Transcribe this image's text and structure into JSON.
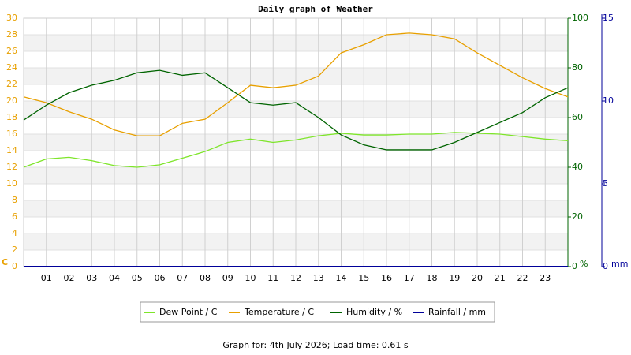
{
  "chart_data": {
    "type": "line",
    "title": "Daily graph of Weather",
    "x": [
      0,
      1,
      2,
      3,
      4,
      5,
      6,
      7,
      8,
      9,
      10,
      11,
      12,
      13,
      14,
      15,
      16,
      17,
      18,
      19,
      20,
      21,
      22,
      23,
      24
    ],
    "xlim": [
      0,
      24
    ],
    "xticks": [
      {
        "value": 1,
        "label": "01"
      },
      {
        "value": 2,
        "label": "02"
      },
      {
        "value": 3,
        "label": "03"
      },
      {
        "value": 4,
        "label": "04"
      },
      {
        "value": 5,
        "label": "05"
      },
      {
        "value": 6,
        "label": "06"
      },
      {
        "value": 7,
        "label": "07"
      },
      {
        "value": 8,
        "label": "08"
      },
      {
        "value": 9,
        "label": "09"
      },
      {
        "value": 10,
        "label": "10"
      },
      {
        "value": 11,
        "label": "11"
      },
      {
        "value": 12,
        "label": "12"
      },
      {
        "value": 13,
        "label": "13"
      },
      {
        "value": 14,
        "label": "14"
      },
      {
        "value": 15,
        "label": "15"
      },
      {
        "value": 16,
        "label": "16"
      },
      {
        "value": 17,
        "label": "17"
      },
      {
        "value": 18,
        "label": "18"
      },
      {
        "value": 19,
        "label": "19"
      },
      {
        "value": 20,
        "label": "20"
      },
      {
        "value": 21,
        "label": "21"
      },
      {
        "value": 22,
        "label": "22"
      },
      {
        "value": 23,
        "label": "23"
      }
    ],
    "ylim": [
      0,
      30
    ],
    "yticks": [
      0,
      2,
      4,
      6,
      8,
      10,
      12,
      14,
      16,
      18,
      20,
      22,
      24,
      26,
      28,
      30
    ],
    "ylabel": "C",
    "ycolor": "#e8a000",
    "y2lim": [
      0,
      100
    ],
    "y2ticks": [
      0,
      20,
      40,
      60,
      80,
      100
    ],
    "y2label": "%",
    "y2color": "#006400",
    "y3lim": [
      0,
      15
    ],
    "y3ticks": [
      0,
      5,
      10,
      15
    ],
    "y3label": "mm",
    "y3color": "#000099",
    "grid": true,
    "series": [
      {
        "name": "Dew Point / C",
        "color": "#7ee52a",
        "values": [
          12.0,
          13.0,
          13.2,
          12.8,
          12.2,
          12.0,
          12.3,
          13.1,
          13.9,
          15.0,
          15.4,
          15.0,
          15.3,
          15.8,
          16.1,
          15.9,
          15.9,
          16.0,
          16.0,
          16.2,
          16.1,
          16.0,
          15.7,
          15.4,
          15.2
        ]
      },
      {
        "name": "Temperature / C",
        "color": "#e8a000",
        "values": [
          20.5,
          19.8,
          18.7,
          17.8,
          16.5,
          15.8,
          15.8,
          17.3,
          17.8,
          19.8,
          21.9,
          21.6,
          21.9,
          23.0,
          25.8,
          26.8,
          28.0,
          28.2,
          28.0,
          27.5,
          25.8,
          24.3,
          22.8,
          21.5,
          20.5
        ]
      },
      {
        "name": "Humidity / %",
        "color": "#006400",
        "axis": "y2",
        "values": [
          59,
          65,
          70,
          73,
          75,
          78,
          79,
          77,
          78,
          72,
          66,
          65,
          66,
          60,
          53,
          49,
          47,
          47,
          47,
          50,
          54,
          58,
          62,
          68,
          72
        ]
      },
      {
        "name": "Rainfall / mm",
        "color": "#000099",
        "axis": "y3",
        "values": [
          0,
          0,
          0,
          0,
          0,
          0,
          0,
          0,
          0,
          0,
          0,
          0,
          0,
          0,
          0,
          0,
          0,
          0,
          0,
          0,
          0,
          0,
          0,
          0,
          0
        ]
      }
    ],
    "footer": "Graph for: 4th July 2026; Load time: 0.61 s"
  }
}
